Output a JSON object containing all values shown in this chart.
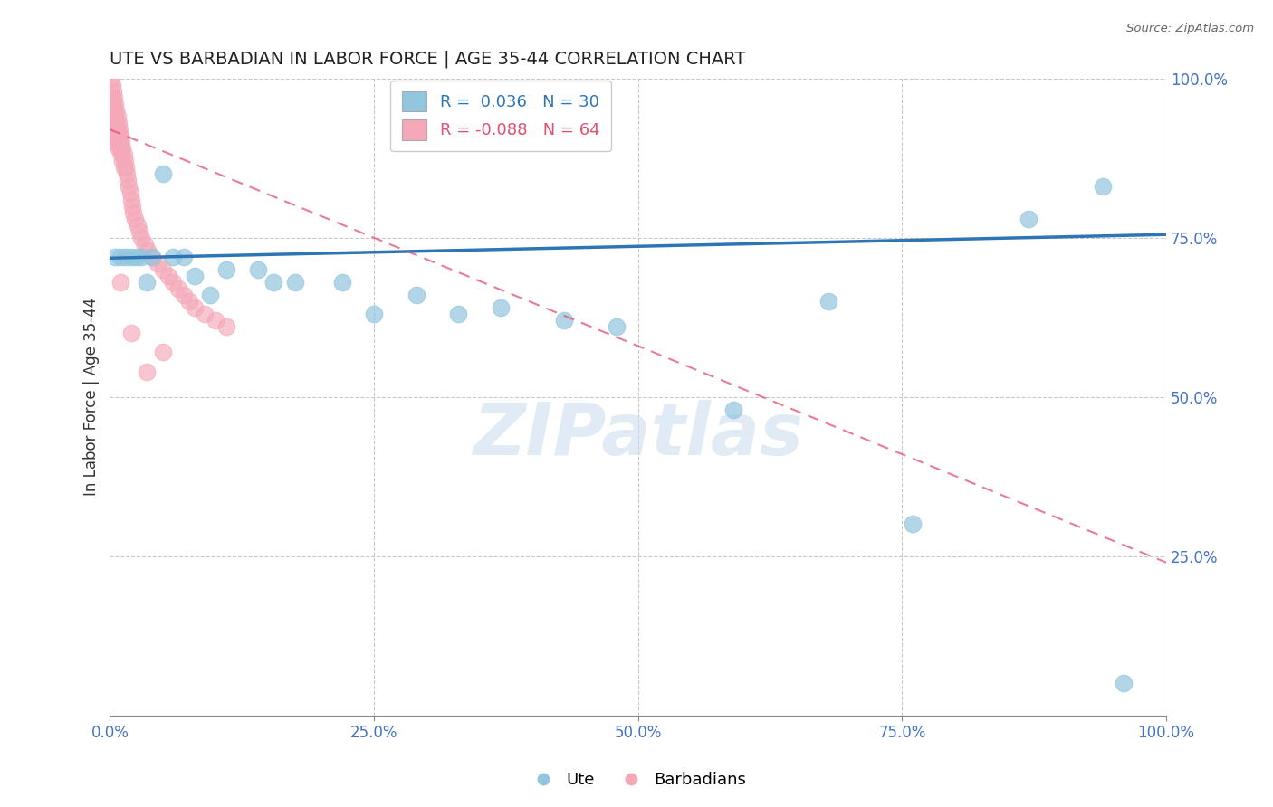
{
  "title": "UTE VS BARBADIAN IN LABOR FORCE | AGE 35-44 CORRELATION CHART",
  "source": "Source: ZipAtlas.com",
  "ylabel": "In Labor Force | Age 35-44",
  "xlim": [
    0.0,
    1.0
  ],
  "ylim": [
    0.0,
    1.0
  ],
  "ute_R": 0.036,
  "ute_N": 30,
  "barbadian_R": -0.088,
  "barbadian_N": 64,
  "ute_color": "#92C5DE",
  "ute_line_color": "#2E75B6",
  "barbadian_color": "#F4A8B8",
  "barbadian_line_color": "#E05070",
  "ute_points_x": [
    0.005,
    0.01,
    0.015,
    0.02,
    0.025,
    0.03,
    0.035,
    0.04,
    0.05,
    0.06,
    0.07,
    0.08,
    0.095,
    0.11,
    0.14,
    0.155,
    0.175,
    0.22,
    0.25,
    0.29,
    0.33,
    0.37,
    0.43,
    0.48,
    0.59,
    0.68,
    0.76,
    0.87,
    0.94,
    0.96
  ],
  "ute_points_y": [
    0.72,
    0.72,
    0.72,
    0.72,
    0.72,
    0.72,
    0.68,
    0.72,
    0.85,
    0.72,
    0.72,
    0.69,
    0.66,
    0.7,
    0.7,
    0.68,
    0.68,
    0.68,
    0.63,
    0.66,
    0.63,
    0.64,
    0.62,
    0.61,
    0.48,
    0.65,
    0.3,
    0.78,
    0.83,
    0.05
  ],
  "barbadian_points_x": [
    0.001,
    0.002,
    0.002,
    0.003,
    0.003,
    0.003,
    0.004,
    0.004,
    0.004,
    0.004,
    0.005,
    0.005,
    0.005,
    0.005,
    0.006,
    0.006,
    0.006,
    0.007,
    0.007,
    0.007,
    0.008,
    0.008,
    0.008,
    0.009,
    0.009,
    0.01,
    0.01,
    0.011,
    0.011,
    0.012,
    0.012,
    0.013,
    0.013,
    0.014,
    0.015,
    0.016,
    0.017,
    0.018,
    0.019,
    0.02,
    0.021,
    0.022,
    0.024,
    0.026,
    0.028,
    0.03,
    0.033,
    0.036,
    0.04,
    0.045,
    0.05,
    0.055,
    0.06,
    0.065,
    0.07,
    0.075,
    0.08,
    0.09,
    0.1,
    0.11,
    0.05,
    0.035,
    0.02,
    0.01
  ],
  "barbadian_points_y": [
    1.0,
    0.99,
    0.97,
    0.98,
    0.96,
    0.94,
    0.97,
    0.95,
    0.93,
    0.91,
    0.96,
    0.94,
    0.92,
    0.9,
    0.95,
    0.93,
    0.91,
    0.94,
    0.92,
    0.9,
    0.93,
    0.91,
    0.89,
    0.92,
    0.9,
    0.91,
    0.89,
    0.9,
    0.88,
    0.89,
    0.87,
    0.88,
    0.86,
    0.87,
    0.86,
    0.85,
    0.84,
    0.83,
    0.82,
    0.81,
    0.8,
    0.79,
    0.78,
    0.77,
    0.76,
    0.75,
    0.74,
    0.73,
    0.72,
    0.71,
    0.7,
    0.69,
    0.68,
    0.67,
    0.66,
    0.65,
    0.64,
    0.63,
    0.62,
    0.61,
    0.57,
    0.54,
    0.6,
    0.68
  ],
  "watermark_text": "ZIPatlas",
  "grid_color": "#BBBBBB",
  "background_color": "#FFFFFF",
  "ute_trendline_y0": 0.718,
  "ute_trendline_y1": 0.755,
  "barb_trendline_y0": 0.92,
  "barb_trendline_y1": 0.24
}
